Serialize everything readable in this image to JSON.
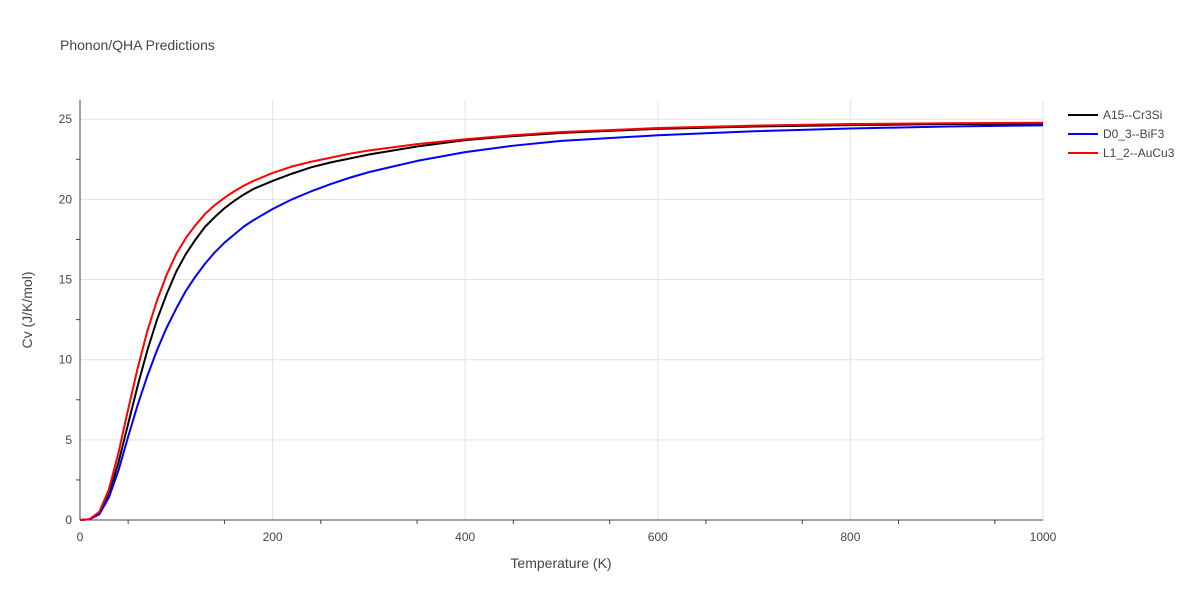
{
  "chart_data": {
    "type": "line",
    "title": "Phonon/QHA Predictions",
    "xlabel": "Temperature (K)",
    "ylabel": "Cv (J/K/mol)",
    "xlim": [
      0,
      1000
    ],
    "ylim": [
      0,
      26.2
    ],
    "x_ticks": [
      0,
      200,
      400,
      600,
      800,
      1000
    ],
    "y_ticks": [
      0,
      5,
      10,
      15,
      20,
      25
    ],
    "grid": true,
    "legend_position": "top-right",
    "series": [
      {
        "name": "A15--Cr3Si",
        "color": "#000000",
        "x": [
          0,
          10,
          20,
          30,
          40,
          50,
          60,
          70,
          80,
          90,
          100,
          110,
          120,
          130,
          140,
          150,
          160,
          170,
          180,
          200,
          220,
          240,
          260,
          280,
          300,
          350,
          400,
          450,
          500,
          600,
          700,
          800,
          900,
          1000
        ],
        "y": [
          0,
          0.05,
          0.4,
          1.6,
          3.6,
          6.0,
          8.4,
          10.6,
          12.5,
          14.1,
          15.5,
          16.6,
          17.5,
          18.3,
          18.9,
          19.45,
          19.9,
          20.3,
          20.65,
          21.15,
          21.6,
          22.0,
          22.3,
          22.55,
          22.8,
          23.3,
          23.7,
          23.95,
          24.15,
          24.4,
          24.55,
          24.63,
          24.7,
          24.72
        ]
      },
      {
        "name": "D0_3--BiF3",
        "color": "#0000ff",
        "x": [
          0,
          10,
          20,
          30,
          40,
          50,
          60,
          70,
          80,
          90,
          100,
          110,
          120,
          130,
          140,
          150,
          160,
          170,
          180,
          200,
          220,
          240,
          260,
          280,
          300,
          350,
          400,
          450,
          500,
          600,
          700,
          800,
          900,
          1000
        ],
        "y": [
          0,
          0.05,
          0.35,
          1.4,
          3.1,
          5.2,
          7.2,
          9.0,
          10.6,
          12.0,
          13.2,
          14.3,
          15.2,
          16.0,
          16.7,
          17.3,
          17.8,
          18.3,
          18.7,
          19.4,
          20.0,
          20.5,
          20.95,
          21.35,
          21.7,
          22.4,
          22.95,
          23.35,
          23.65,
          24.0,
          24.25,
          24.42,
          24.55,
          24.62
        ]
      },
      {
        "name": "L1_2--AuCu3",
        "color": "#ff0000",
        "x": [
          0,
          10,
          20,
          30,
          40,
          50,
          60,
          70,
          80,
          90,
          100,
          110,
          120,
          130,
          140,
          150,
          160,
          170,
          180,
          200,
          220,
          240,
          260,
          280,
          300,
          350,
          400,
          450,
          500,
          600,
          700,
          800,
          900,
          1000
        ],
        "y": [
          0,
          0.05,
          0.5,
          1.9,
          4.2,
          6.9,
          9.5,
          11.8,
          13.7,
          15.3,
          16.6,
          17.6,
          18.4,
          19.1,
          19.65,
          20.1,
          20.5,
          20.85,
          21.15,
          21.65,
          22.05,
          22.35,
          22.6,
          22.85,
          23.05,
          23.45,
          23.75,
          24.0,
          24.2,
          24.45,
          24.6,
          24.7,
          24.75,
          24.78
        ]
      }
    ]
  }
}
